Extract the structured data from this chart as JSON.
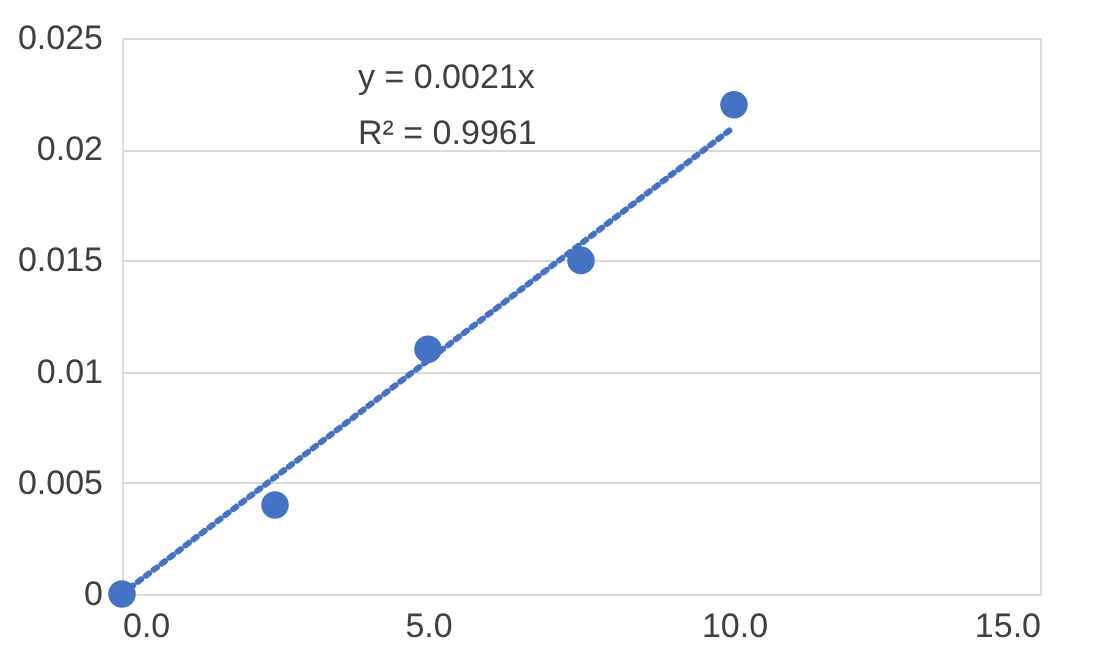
{
  "chart_data": {
    "type": "scatter",
    "grid": "y",
    "xlim": [
      0,
      15
    ],
    "xticks": [
      {
        "value": 0,
        "label": "0.0"
      },
      {
        "value": 5,
        "label": "5.0"
      },
      {
        "value": 10,
        "label": "10.0"
      },
      {
        "value": 15,
        "label": "15.0"
      }
    ],
    "ylim": [
      0,
      0.025
    ],
    "yticks": [
      {
        "value": 0,
        "label": "0"
      },
      {
        "value": 0.005,
        "label": "0.005"
      },
      {
        "value": 0.01,
        "label": "0.01"
      },
      {
        "value": 0.015,
        "label": "0.015"
      },
      {
        "value": 0.02,
        "label": "0.02"
      },
      {
        "value": 0.025,
        "label": "0.025"
      }
    ],
    "series": [
      {
        "color": "#4472c4",
        "marker": "circle",
        "x": [
          0,
          2.5,
          5,
          7.5,
          10
        ],
        "values": [
          0,
          0.004,
          0.011,
          0.015,
          0.022
        ]
      },
      {
        "type": "line",
        "color": "#4472c4",
        "line_style": "dotted",
        "marker": "none",
        "x": [
          0,
          10
        ],
        "values": [
          0,
          0.021
        ]
      }
    ],
    "annotations": [
      "y = 0.0021x",
      "R² = 0.9961"
    ]
  }
}
